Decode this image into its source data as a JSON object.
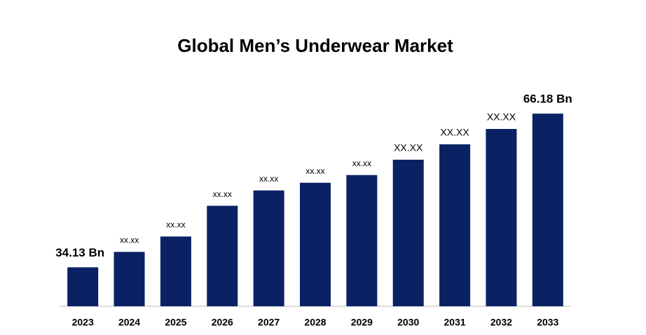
{
  "chart_data": {
    "type": "bar",
    "title": "Global Men’s Underwear Market",
    "categories": [
      "2023",
      "2024",
      "2025",
      "2026",
      "2027",
      "2028",
      "2029",
      "2030",
      "2031",
      "2032",
      "2033"
    ],
    "values": [
      34.13,
      37.34,
      40.55,
      46.96,
      50.16,
      51.76,
      53.37,
      56.57,
      59.78,
      62.98,
      66.18
    ],
    "value_labels": [
      "34.13 Bn",
      "xx.xx",
      "xx.xx",
      "xx.xx",
      "xx.xx",
      "xx.xx",
      "xx.xx",
      "XX.XX",
      "XX.XX",
      "XX.XX",
      "66.18 Bn"
    ],
    "color": "#0a2263",
    "ylim": [
      26,
      70
    ]
  }
}
